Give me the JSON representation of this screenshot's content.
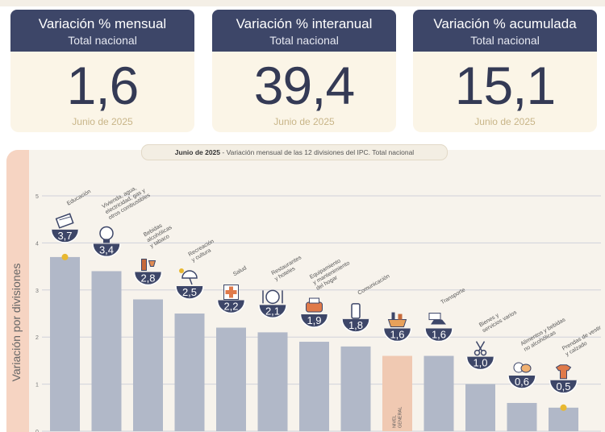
{
  "cards": [
    {
      "title": "Variación % mensual",
      "subtitle": "Total nacional",
      "value": "1,6",
      "date": "Junio de 2025"
    },
    {
      "title": "Variación % interanual",
      "subtitle": "Total nacional",
      "value": "39,4",
      "date": "Junio de 2025"
    },
    {
      "title": "Variación % acumulada",
      "subtitle": "Total nacional",
      "value": "15,1",
      "date": "Junio de 2025"
    }
  ],
  "chart_caption": {
    "prefix": "Junio de 2025",
    "text": " - Variación mensual de las 12 divisiones del IPC. Total nacional"
  },
  "y_axis_title": "Variación por divisiones",
  "colors": {
    "navy": "#3d4668",
    "bar": "#b1b8c8",
    "highlight_bar": "#f0c9b2",
    "cream": "#fbf5e7",
    "dot": "#e8b830"
  },
  "chart_data": {
    "type": "bar",
    "ylim": [
      0,
      5
    ],
    "yticks": [
      0,
      1,
      2,
      3,
      4,
      5
    ],
    "grid": true,
    "categories": [
      {
        "label": [
          "Educación"
        ],
        "value": 3.7,
        "display": "3,7",
        "icon": "books-icon",
        "dot": true
      },
      {
        "label": [
          "Vivienda, agua,",
          "electricidad, gas y",
          "otros combustibles"
        ],
        "value": 3.4,
        "display": "3,4",
        "icon": "lightbulb-icon"
      },
      {
        "label": [
          "Bebidas",
          "alcohólicas",
          "y tabaco"
        ],
        "value": 2.8,
        "display": "2,8",
        "icon": "wine-icon"
      },
      {
        "label": [
          "Recreación",
          "y cultura"
        ],
        "value": 2.5,
        "display": "2,5",
        "icon": "beach-umbrella-icon"
      },
      {
        "label": [
          "Salud"
        ],
        "value": 2.2,
        "display": "2,2",
        "icon": "medical-cross-icon"
      },
      {
        "label": [
          "Restaurantes",
          "y hoteles"
        ],
        "value": 2.1,
        "display": "2,1",
        "icon": "plate-icon"
      },
      {
        "label": [
          "Equipamiento",
          "y mantenimiento",
          "del hogar"
        ],
        "value": 1.9,
        "display": "1,9",
        "icon": "toaster-icon"
      },
      {
        "label": [
          "Comunicación"
        ],
        "value": 1.8,
        "display": "1,8",
        "icon": "phone-icon"
      },
      {
        "label": [
          "NIVEL",
          "GENERAL"
        ],
        "value": 1.6,
        "display": "1,6",
        "icon": "shopping-basket-icon",
        "highlight": true
      },
      {
        "label": [
          "Transporte"
        ],
        "value": 1.6,
        "display": "1,6",
        "icon": "car-icon"
      },
      {
        "label": [
          "Bienes y",
          "servicios varios"
        ],
        "value": 1.0,
        "display": "1,0",
        "icon": "scissors-icon"
      },
      {
        "label": [
          "Alimentos y bebidas",
          "no alcohólicas"
        ],
        "value": 0.6,
        "display": "0,6",
        "icon": "grocery-icon"
      },
      {
        "label": [
          "Prendas de vestir",
          "y calzado"
        ],
        "value": 0.5,
        "display": "0,5",
        "icon": "tshirt-icon",
        "dot": true
      }
    ]
  }
}
